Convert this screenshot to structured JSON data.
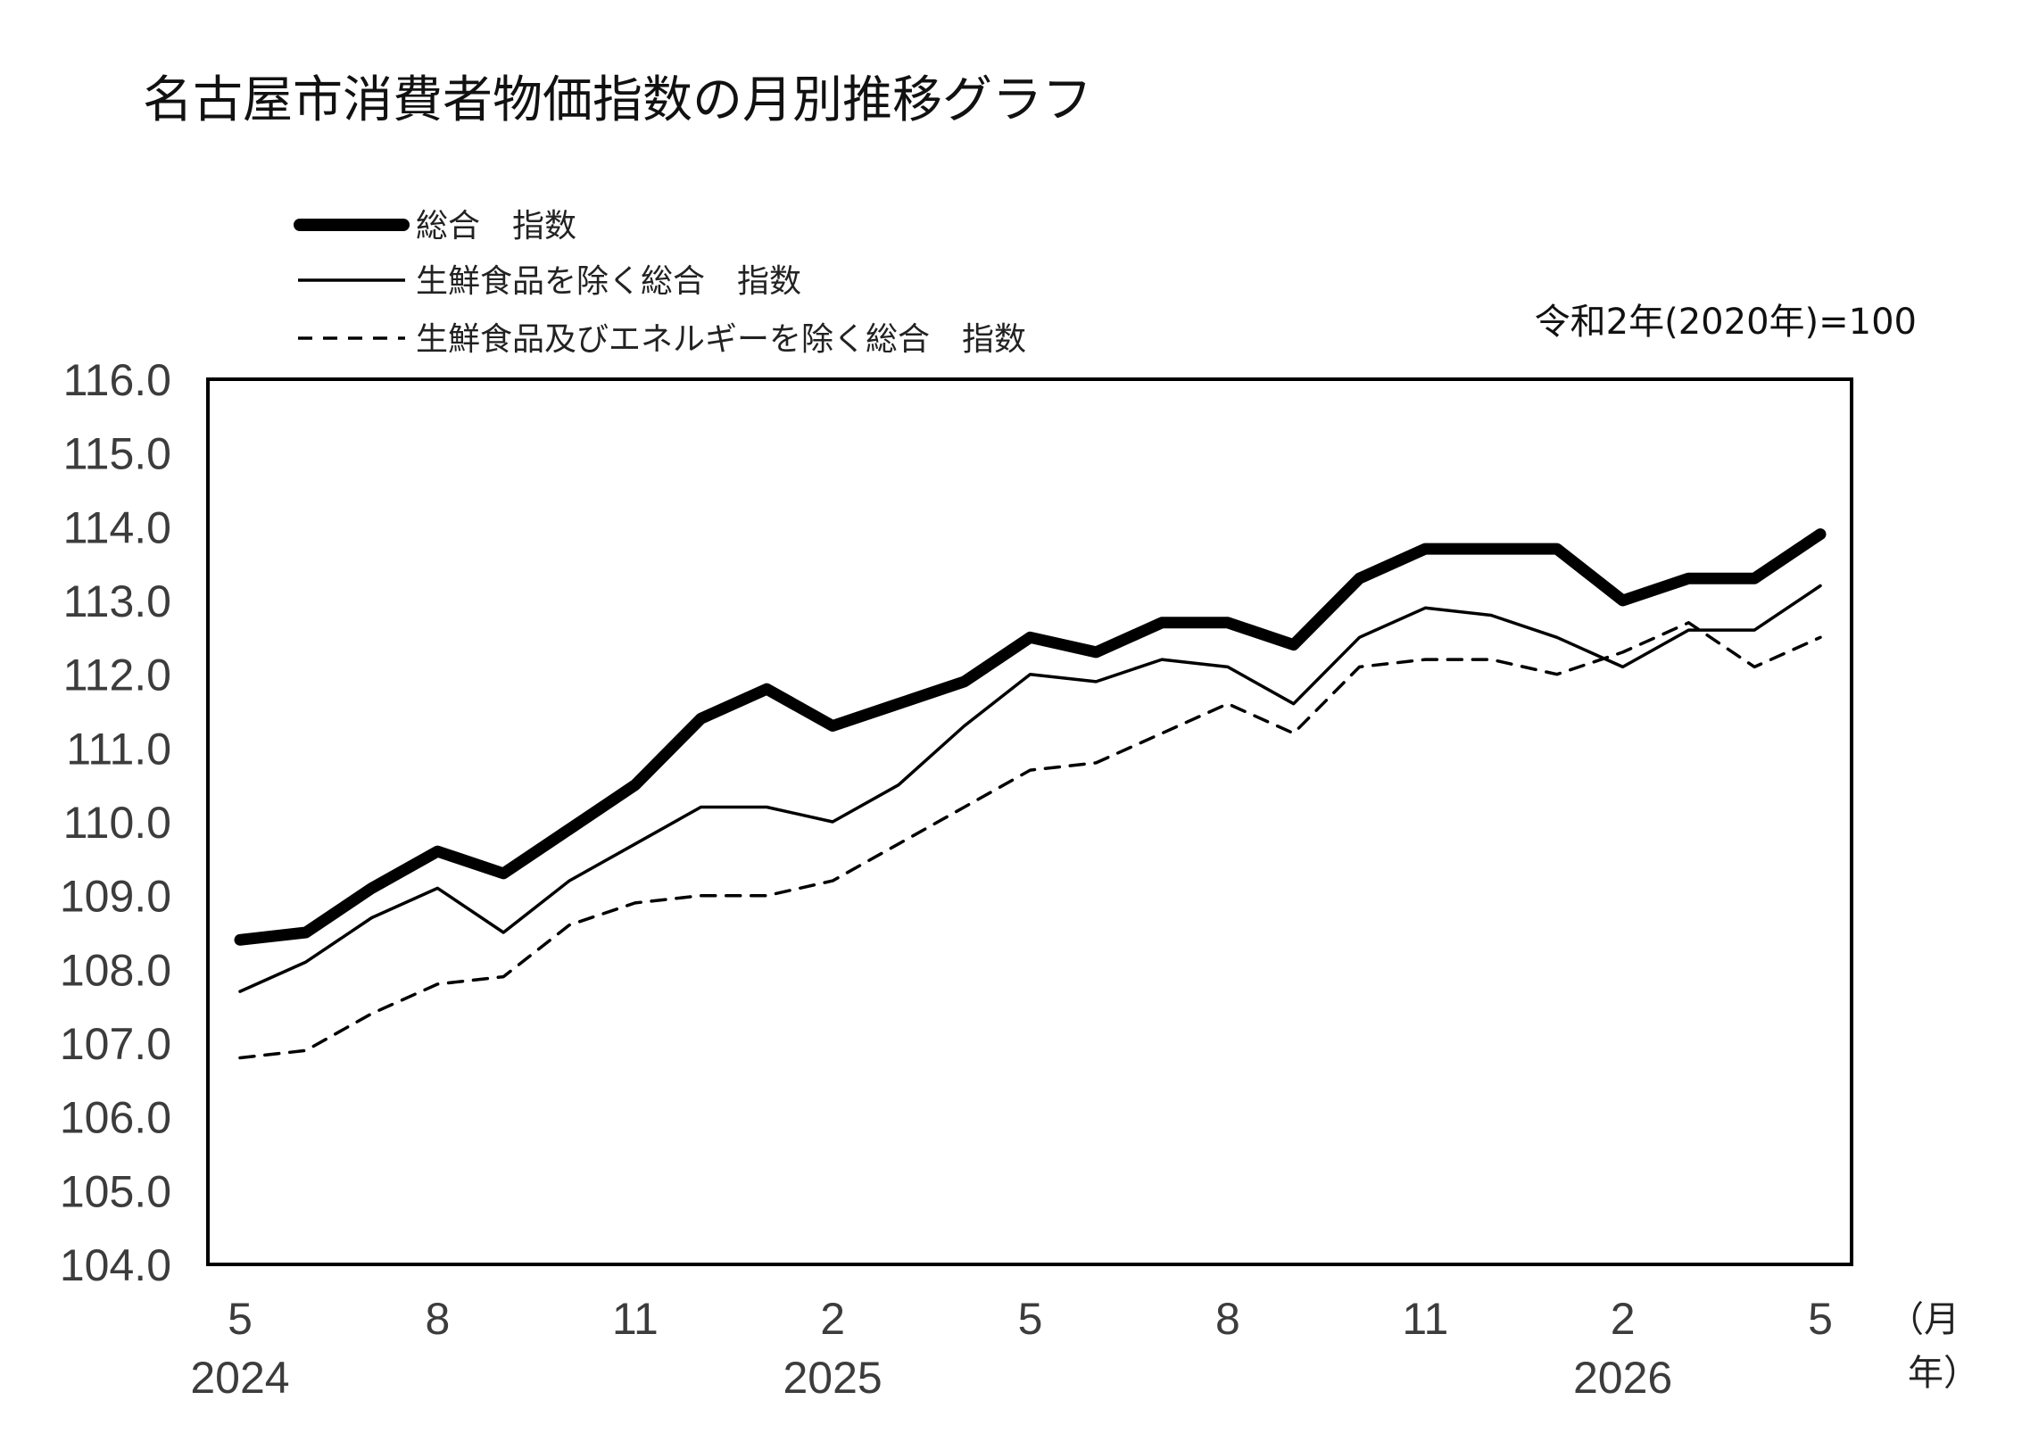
{
  "chart_data": {
    "type": "line",
    "title": "名古屋市消費者物価指数の月別推移グラフ",
    "base_note": "令和2年(2020年)=100",
    "xlabel_lines": [
      "（月",
      "年）"
    ],
    "ylabel": "",
    "ylim": [
      104,
      116
    ],
    "grid": false,
    "legend": "top-left",
    "x": [
      "2024-05",
      "2024-06",
      "2024-07",
      "2024-08",
      "2024-09",
      "2024-10",
      "2024-11",
      "2024-12",
      "2025-01",
      "2025-02",
      "2025-03",
      "2025-04",
      "2025-05",
      "2025-06",
      "2025-07",
      "2025-08",
      "2025-09",
      "2025-10",
      "2025-11",
      "2025-12",
      "2026-01",
      "2026-02",
      "2026-03",
      "2026-04",
      "2026-05"
    ],
    "x_ticks": [
      {
        "x": "2024-05",
        "label": "5"
      },
      {
        "x": "2024-08",
        "label": "8"
      },
      {
        "x": "2024-11",
        "label": "11"
      },
      {
        "x": "2025-02",
        "label": "2"
      },
      {
        "x": "2025-05",
        "label": "5"
      },
      {
        "x": "2025-08",
        "label": "8"
      },
      {
        "x": "2025-11",
        "label": "11"
      },
      {
        "x": "2026-02",
        "label": "2"
      },
      {
        "x": "2026-05",
        "label": "5"
      }
    ],
    "year_labels": [
      {
        "x": "2024-05",
        "label": "2024"
      },
      {
        "x": "2025-02",
        "label": "2025"
      },
      {
        "x": "2026-02",
        "label": "2026"
      }
    ],
    "y_ticks": [
      {
        "value": 116,
        "label": "116.0"
      },
      {
        "value": 115,
        "label": "115.0"
      },
      {
        "value": 114,
        "label": "114.0"
      },
      {
        "value": 113,
        "label": "113.0"
      },
      {
        "value": 112,
        "label": "112.0"
      },
      {
        "value": 111,
        "label": "111.0"
      },
      {
        "value": 110,
        "label": "110.0"
      },
      {
        "value": 109,
        "label": "109.0"
      },
      {
        "value": 108,
        "label": "108.0"
      },
      {
        "value": 107,
        "label": "107.0"
      },
      {
        "value": 106,
        "label": "106.0"
      },
      {
        "value": 105,
        "label": "105.0"
      },
      {
        "value": 104,
        "label": "104.0"
      }
    ],
    "series": [
      {
        "name": "総合　指数",
        "line_style": "thick-solid",
        "values": [
          108.4,
          108.5,
          109.1,
          109.6,
          109.3,
          109.9,
          110.5,
          111.4,
          111.8,
          111.3,
          111.6,
          111.9,
          112.5,
          112.3,
          112.7,
          112.7,
          112.4,
          113.3,
          113.7,
          113.7,
          113.7,
          113.0,
          113.3,
          113.3,
          113.9
        ]
      },
      {
        "name": "生鮮食品を除く総合　指数",
        "line_style": "thin-solid",
        "values": [
          107.7,
          108.1,
          108.7,
          109.1,
          108.5,
          109.2,
          109.7,
          110.2,
          110.2,
          110.0,
          110.5,
          111.3,
          112.0,
          111.9,
          112.2,
          112.1,
          111.6,
          112.5,
          112.9,
          112.8,
          112.5,
          112.1,
          112.6,
          112.6,
          113.2
        ]
      },
      {
        "name": "生鮮食品及びエネルギーを除く総合　指数",
        "line_style": "thin-dashed",
        "values": [
          106.8,
          106.9,
          107.4,
          107.8,
          107.9,
          108.6,
          108.9,
          109.0,
          109.0,
          109.2,
          109.7,
          110.2,
          110.7,
          110.8,
          111.2,
          111.6,
          111.2,
          112.1,
          112.2,
          112.2,
          112.0,
          112.3,
          112.7,
          112.1,
          112.5
        ]
      }
    ]
  }
}
